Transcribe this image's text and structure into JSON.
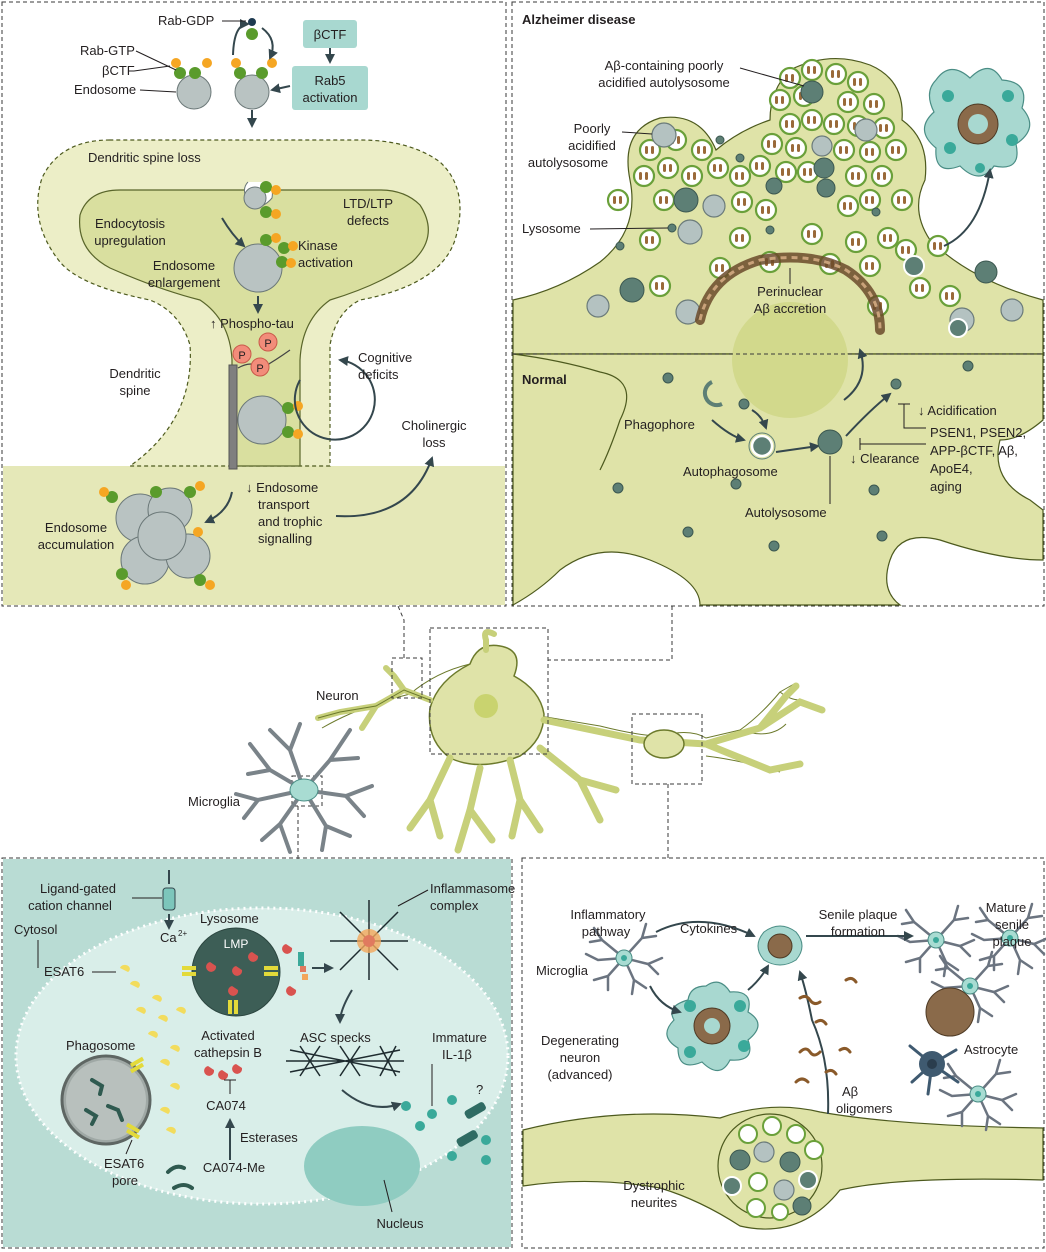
{
  "top_left": {
    "rab_gdp": "Rab-GDP",
    "rab_gtp": "Rab-GTP",
    "bctf_left": "βCTF",
    "endosome": "Endosome",
    "bctf_box": "βCTF",
    "rab5_line1": "Rab5",
    "rab5_line2": "activation",
    "spine_loss": "Dendritic spine loss",
    "endocytosis_line1": "Endocytosis",
    "endocytosis_line2": "upregulation",
    "ltd_line1": "LTD/LTP",
    "ltd_line2": "defects",
    "kinase_line1": "Kinase",
    "kinase_line2": "activation",
    "enlargement_line1": "Endosome",
    "enlargement_line2": "enlargement",
    "phospho_tau": "↑ Phospho-tau",
    "p_badge": "P",
    "cognitive_line1": "Cognitive",
    "cognitive_line2": "deficits",
    "dendritic_line1": "Dendritic",
    "dendritic_line2": "spine",
    "cholinergic_line1": "Cholinergic",
    "cholinergic_line2": "loss",
    "transport_line1": "↓ Endosome",
    "transport_line2": "transport",
    "transport_line3": "and trophic",
    "transport_line4": "signalling",
    "accumulation_line1": "Endosome",
    "accumulation_line2": "accumulation"
  },
  "top_right": {
    "title_ad": "Alzheimer disease",
    "abeta_auto_line1": "Aβ-containing poorly",
    "abeta_auto_line2": "acidified autolysosome",
    "poorly_line1": "Poorly",
    "poorly_line2": "acidified",
    "poorly_line3": "autolysosome",
    "lysosome": "Lysosome",
    "perinuclear_line1": "Perinuclear",
    "perinuclear_line2": "Aβ accretion",
    "title_normal": "Normal",
    "phagophore": "Phagophore",
    "autophagosome": "Autophagosome",
    "autolysosome": "Autolysosome",
    "clearance": "↓ Clearance",
    "acidification": "↓ Acidification",
    "factors_line1": "PSEN1, PSEN2,",
    "factors_line2": "APP-βCTF, Aβ,",
    "factors_line3": "ApoE4,",
    "factors_line4": "aging"
  },
  "middle": {
    "neuron": "Neuron",
    "microglia": "Microglia"
  },
  "bottom_left": {
    "channel_line1": "Ligand-gated",
    "channel_line2": "cation channel",
    "cytosol": "Cytosol",
    "ca": "Ca",
    "ca_sup": "2+",
    "lysosome": "Lysosome",
    "lmp": "LMP",
    "esat6": "ESAT6",
    "phagosome": "Phagosome",
    "esat6pore_line1": "ESAT6",
    "esat6pore_line2": "pore",
    "cathepsin_line1": "Activated",
    "cathepsin_line2": "cathepsin B",
    "ca074": "CA074",
    "esterases": "Esterases",
    "ca074me": "CA074-Me",
    "inflammasome_line1": "Inflammasome",
    "inflammasome_line2": "complex",
    "asc": "ASC specks",
    "immature_line1": "Immature",
    "immature_line2": "IL-1β",
    "question": "?",
    "nucleus": "Nucleus"
  },
  "bottom_right": {
    "inflammatory_line1": "Inflammatory",
    "inflammatory_line2": "pathway",
    "cytokines": "Cytokines",
    "senile_line1": "Senile plaque",
    "senile_line2": "formation",
    "mature_line1": "Mature",
    "mature_line2": "senile",
    "mature_line3": "plaque",
    "microglia": "Microglia",
    "degenerating_line1": "Degenerating",
    "degenerating_line2": "neuron",
    "degenerating_line3": "(advanced)",
    "astrocyte": "Astrocyte",
    "oligomers_line1": "Aβ",
    "oligomers_line2": "oligomers",
    "dystrophic_line1": "Dystrophic",
    "dystrophic_line2": "neurites"
  },
  "colors": {
    "cytoplasm": "#dfe3a8",
    "endosome": "#b9c3c2",
    "rab_gtp": "#5a9b2c",
    "bctf": "#f5a623",
    "box_teal": "#a8d8d0",
    "panel_teal": "#b9dcd4",
    "phospho": "#f28c7a"
  }
}
